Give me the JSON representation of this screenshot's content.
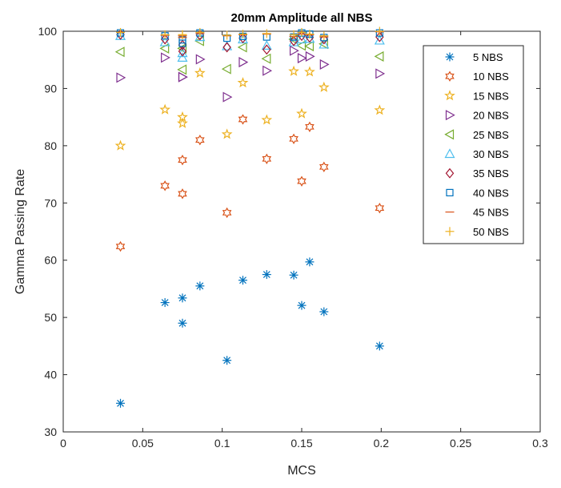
{
  "chart_data": {
    "type": "scatter",
    "title": "20mm Amplitude all NBS",
    "xlabel": "MCS",
    "ylabel": "Gamma Passing Rate",
    "xlim": [
      0,
      0.3
    ],
    "ylim": [
      30,
      100
    ],
    "x_ticks": [
      0,
      0.05,
      0.1,
      0.15,
      0.2,
      0.25,
      0.3
    ],
    "x_tick_labels": [
      "0",
      "0.05",
      "0.1",
      "0.15",
      "0.2",
      "0.25",
      "0.3"
    ],
    "y_ticks": [
      30,
      40,
      50,
      60,
      70,
      80,
      90,
      100
    ],
    "y_tick_labels": [
      "30",
      "40",
      "50",
      "60",
      "70",
      "80",
      "90",
      "100"
    ],
    "grid": false,
    "legend_position": "top-right",
    "x": [
      0.036,
      0.064,
      0.075,
      0.075,
      0.086,
      0.103,
      0.113,
      0.128,
      0.145,
      0.15,
      0.155,
      0.164,
      0.199
    ],
    "series": [
      {
        "name": "5 NBS",
        "marker": "asterisk",
        "color": "#0072BD",
        "values": [
          35.0,
          52.6,
          49.0,
          53.4,
          55.5,
          42.5,
          56.5,
          57.5,
          57.4,
          52.1,
          59.7,
          51.0,
          45.0
        ]
      },
      {
        "name": "10 NBS",
        "marker": "hexagram",
        "color": "#D95319",
        "values": [
          62.4,
          73.0,
          71.6,
          77.5,
          81.0,
          68.3,
          84.6,
          77.7,
          81.2,
          73.8,
          83.3,
          76.3,
          69.1
        ]
      },
      {
        "name": "15 NBS",
        "marker": "pentagram",
        "color": "#EDB120",
        "values": [
          80.0,
          86.3,
          83.9,
          85.0,
          92.7,
          82.0,
          91.0,
          84.5,
          93.0,
          85.6,
          92.9,
          90.2,
          86.2
        ]
      },
      {
        "name": "20 NBS",
        "marker": "triangle-right",
        "color": "#7E2F8E",
        "values": [
          91.9,
          95.4,
          92.0,
          92.0,
          95.1,
          88.5,
          94.6,
          93.1,
          96.6,
          95.3,
          95.6,
          94.2,
          92.6
        ]
      },
      {
        "name": "25 NBS",
        "marker": "triangle-left",
        "color": "#77AC30",
        "values": [
          96.4,
          97.0,
          93.3,
          97.0,
          98.3,
          93.4,
          97.2,
          95.2,
          98.6,
          97.5,
          97.4,
          97.8,
          95.6
        ]
      },
      {
        "name": "30 NBS",
        "marker": "triangle-up",
        "color": "#4DBEEE",
        "values": [
          99.2,
          98.1,
          95.4,
          96.2,
          99.0,
          97.4,
          98.6,
          97.5,
          98.1,
          98.6,
          98.7,
          97.7,
          98.4
        ]
      },
      {
        "name": "35 NBS",
        "marker": "diamond",
        "color": "#A2142F",
        "values": [
          99.4,
          98.6,
          96.5,
          97.6,
          99.3,
          97.2,
          98.8,
          96.8,
          98.3,
          99.2,
          98.9,
          98.6,
          99.0
        ]
      },
      {
        "name": "40 NBS",
        "marker": "square",
        "color": "#0072BD",
        "values": [
          99.7,
          99.2,
          97.9,
          98.5,
          99.7,
          98.8,
          99.1,
          99.0,
          99.0,
          99.7,
          99.5,
          98.9,
          99.7
        ]
      },
      {
        "name": "45 NBS",
        "marker": "hline",
        "color": "#D95319",
        "values": [
          99.8,
          99.3,
          98.9,
          99.2,
          99.6,
          99.2,
          99.4,
          99.5,
          99.1,
          99.5,
          99.4,
          99.0,
          99.9
        ]
      },
      {
        "name": "50 NBS",
        "marker": "plus",
        "color": "#EDB120",
        "values": [
          99.8,
          99.4,
          99.4,
          99.4,
          99.8,
          99.3,
          99.5,
          99.6,
          99.4,
          99.8,
          99.5,
          99.2,
          100.0
        ]
      }
    ]
  }
}
